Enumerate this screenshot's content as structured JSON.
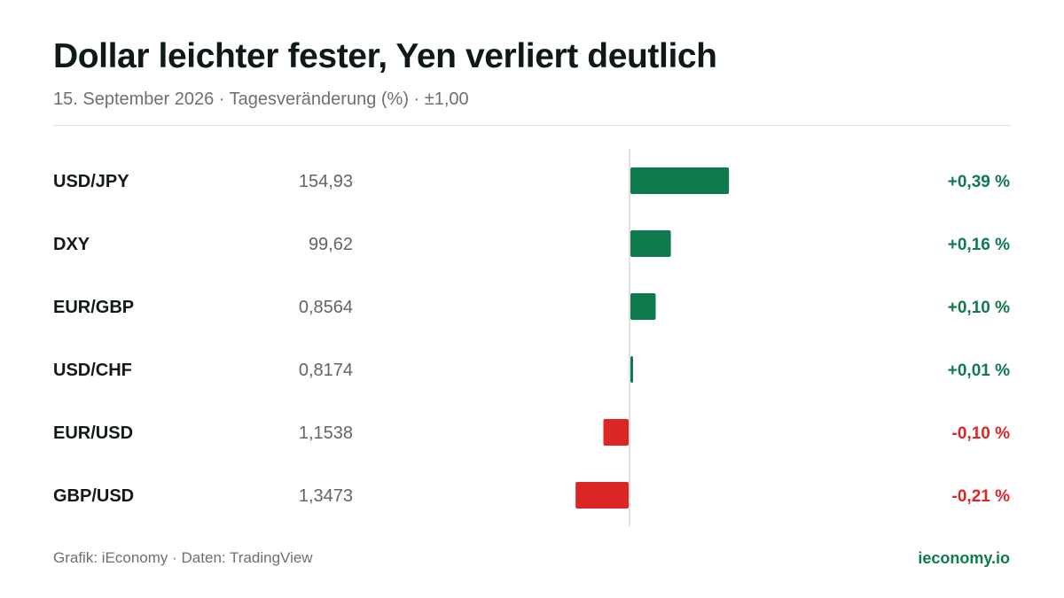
{
  "header": {
    "title": "Dollar leichter fester, Yen verliert deutlich",
    "subtitle": "15. September 2026 · Tagesveränderung (%) · ±1,00"
  },
  "footer": {
    "source": "Grafik: iEconomy · Daten: TradingView",
    "brand": "ieconomy.io"
  },
  "colors": {
    "positive": "#0e7a4d",
    "negative": "#dc2626",
    "axis": "#d4d7d5",
    "label": "#111a17",
    "price": "#5f6663"
  },
  "chart_data": {
    "type": "bar",
    "orientation": "horizontal",
    "title": "Dollar leichter fester, Yen verliert deutlich",
    "subtitle": "15. September 2026 · Tagesveränderung (%) · ±1,00",
    "xlim": [
      -1.0,
      1.0
    ],
    "grid": false,
    "legend": "none",
    "rows": [
      {
        "pair": "USD/JPY",
        "price": "154,93",
        "change": 0.39,
        "change_label": "+0,39 %"
      },
      {
        "pair": "DXY",
        "price": "99,62",
        "change": 0.16,
        "change_label": "+0,16 %"
      },
      {
        "pair": "EUR/GBP",
        "price": "0,8564",
        "change": 0.1,
        "change_label": "+0,10 %"
      },
      {
        "pair": "USD/CHF",
        "price": "0,8174",
        "change": 0.01,
        "change_label": "+0,01 %"
      },
      {
        "pair": "EUR/USD",
        "price": "1,1538",
        "change": -0.1,
        "change_label": "-0,10 %"
      },
      {
        "pair": "GBP/USD",
        "price": "1,3473",
        "change": -0.21,
        "change_label": "-0,21 %"
      }
    ]
  }
}
